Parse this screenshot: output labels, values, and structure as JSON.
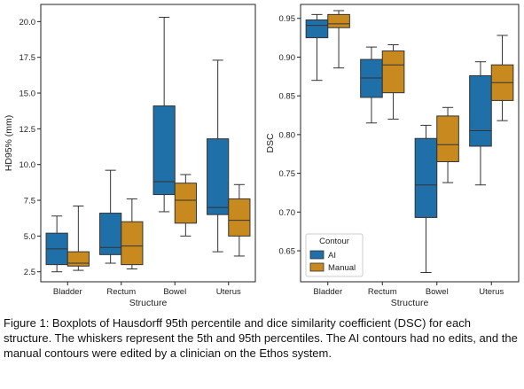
{
  "colors": {
    "ai": "#1f6fa9",
    "manual": "#c88a1f",
    "line": "#333333",
    "frame": "#222222"
  },
  "caption": "Figure 1: Boxplots of Hausdorff 95th percentile and dice similarity coefficient (DSC) for each structure. The whiskers represent the 5th and 95th percentiles. The AI contours had no edits, and the manual contours were edited by a clinician on the Ethos system.",
  "chart_data": [
    {
      "type": "boxplot",
      "xlabel": "Structure",
      "ylabel": "HD95% (mm)",
      "categories": [
        "Bladder",
        "Rectum",
        "Bowel",
        "Uterus"
      ],
      "ylim": [
        1.8,
        21.2
      ],
      "yticks": [
        "2.5",
        "5.0",
        "7.5",
        "10.0",
        "12.5",
        "15.0",
        "17.5",
        "20.0"
      ],
      "series": [
        {
          "name": "AI",
          "boxes": [
            {
              "whislo": 2.5,
              "q1": 3.0,
              "med": 4.1,
              "q3": 5.2,
              "whishi": 6.4
            },
            {
              "whislo": 3.1,
              "q1": 3.7,
              "med": 4.2,
              "q3": 6.6,
              "whishi": 9.6
            },
            {
              "whislo": 6.7,
              "q1": 7.9,
              "med": 8.8,
              "q3": 14.1,
              "whishi": 20.3
            },
            {
              "whislo": 3.9,
              "q1": 6.5,
              "med": 7.0,
              "q3": 11.8,
              "whishi": 17.3
            }
          ]
        },
        {
          "name": "Manual",
          "boxes": [
            {
              "whislo": 2.6,
              "q1": 2.9,
              "med": 3.1,
              "q3": 3.9,
              "whishi": 7.1
            },
            {
              "whislo": 2.7,
              "q1": 3.0,
              "med": 4.3,
              "q3": 6.0,
              "whishi": 7.6
            },
            {
              "whislo": 5.0,
              "q1": 5.9,
              "med": 7.5,
              "q3": 8.7,
              "whishi": 9.3
            },
            {
              "whislo": 3.6,
              "q1": 5.0,
              "med": 6.1,
              "q3": 7.6,
              "whishi": 8.6
            }
          ]
        }
      ]
    },
    {
      "type": "boxplot",
      "xlabel": "Structure",
      "ylabel": "DSC",
      "categories": [
        "Bladder",
        "Rectum",
        "Bowel",
        "Uterus"
      ],
      "ylim": [
        0.61,
        0.968
      ],
      "yticks": [
        "0.65",
        "0.70",
        "0.75",
        "0.80",
        "0.85",
        "0.90",
        "0.95"
      ],
      "legend": {
        "title": "Contour",
        "entries": [
          "AI",
          "Manual"
        ],
        "position": "lower-left"
      },
      "series": [
        {
          "name": "AI",
          "boxes": [
            {
              "whislo": 0.87,
              "q1": 0.925,
              "med": 0.941,
              "q3": 0.948,
              "whishi": 0.955
            },
            {
              "whislo": 0.815,
              "q1": 0.848,
              "med": 0.873,
              "q3": 0.897,
              "whishi": 0.913
            },
            {
              "whislo": 0.622,
              "q1": 0.693,
              "med": 0.735,
              "q3": 0.795,
              "whishi": 0.812
            },
            {
              "whislo": 0.735,
              "q1": 0.785,
              "med": 0.805,
              "q3": 0.876,
              "whishi": 0.894
            }
          ]
        },
        {
          "name": "Manual",
          "boxes": [
            {
              "whislo": 0.886,
              "q1": 0.938,
              "med": 0.943,
              "q3": 0.955,
              "whishi": 0.96
            },
            {
              "whislo": 0.82,
              "q1": 0.854,
              "med": 0.89,
              "q3": 0.908,
              "whishi": 0.916
            },
            {
              "whislo": 0.738,
              "q1": 0.765,
              "med": 0.787,
              "q3": 0.824,
              "whishi": 0.835
            },
            {
              "whislo": 0.818,
              "q1": 0.844,
              "med": 0.867,
              "q3": 0.89,
              "whishi": 0.928
            }
          ]
        }
      ]
    }
  ]
}
